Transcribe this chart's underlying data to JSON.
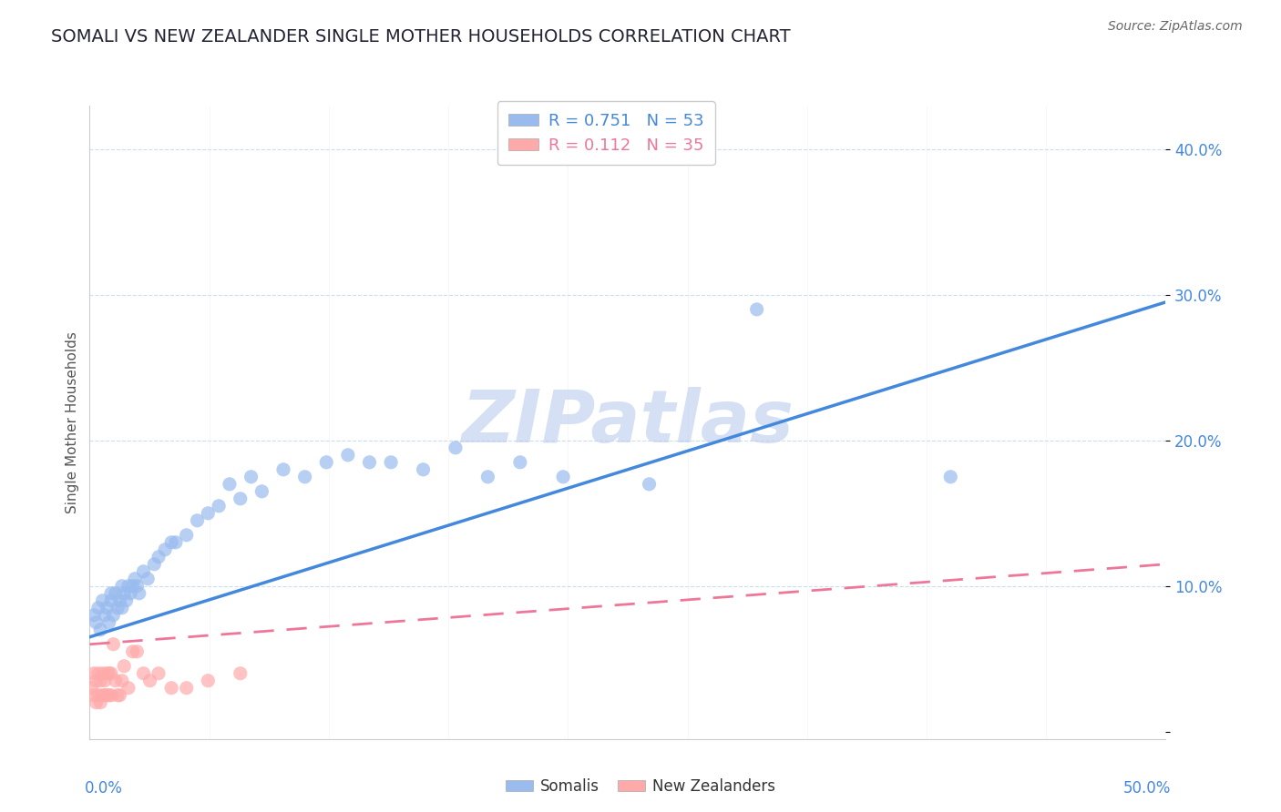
{
  "title": "SOMALI VS NEW ZEALANDER SINGLE MOTHER HOUSEHOLDS CORRELATION CHART",
  "source_text": "Source: ZipAtlas.com",
  "ylabel": "Single Mother Households",
  "xlim": [
    0.0,
    0.5
  ],
  "ylim": [
    -0.005,
    0.43
  ],
  "yticks": [
    0.0,
    0.1,
    0.2,
    0.3,
    0.4
  ],
  "ytick_labels": [
    "",
    "10.0%",
    "20.0%",
    "30.0%",
    "40.0%"
  ],
  "somali_R": 0.751,
  "somali_N": 53,
  "nz_R": 0.112,
  "nz_N": 35,
  "somali_color": "#99BBEE",
  "nz_color": "#FFAAAA",
  "somali_line_color": "#4488DD",
  "nz_line_color": "#EE7799",
  "watermark": "ZIPatlas",
  "watermark_color": "#BBCCEE",
  "background_color": "#FFFFFF",
  "title_fontsize": 14,
  "somali_x": [
    0.002,
    0.003,
    0.004,
    0.005,
    0.006,
    0.007,
    0.008,
    0.009,
    0.01,
    0.01,
    0.011,
    0.012,
    0.013,
    0.014,
    0.015,
    0.015,
    0.016,
    0.017,
    0.018,
    0.019,
    0.02,
    0.021,
    0.022,
    0.023,
    0.025,
    0.027,
    0.03,
    0.032,
    0.035,
    0.038,
    0.04,
    0.045,
    0.05,
    0.055,
    0.06,
    0.065,
    0.07,
    0.075,
    0.08,
    0.09,
    0.1,
    0.11,
    0.12,
    0.13,
    0.14,
    0.155,
    0.17,
    0.185,
    0.2,
    0.22,
    0.26,
    0.31,
    0.4
  ],
  "somali_y": [
    0.08,
    0.075,
    0.085,
    0.07,
    0.09,
    0.08,
    0.085,
    0.075,
    0.09,
    0.095,
    0.08,
    0.095,
    0.085,
    0.09,
    0.1,
    0.085,
    0.095,
    0.09,
    0.1,
    0.095,
    0.1,
    0.105,
    0.1,
    0.095,
    0.11,
    0.105,
    0.115,
    0.12,
    0.125,
    0.13,
    0.13,
    0.135,
    0.145,
    0.15,
    0.155,
    0.17,
    0.16,
    0.175,
    0.165,
    0.18,
    0.175,
    0.185,
    0.19,
    0.185,
    0.185,
    0.18,
    0.195,
    0.175,
    0.185,
    0.175,
    0.17,
    0.29,
    0.175
  ],
  "nz_x": [
    0.001,
    0.002,
    0.002,
    0.003,
    0.003,
    0.004,
    0.004,
    0.005,
    0.005,
    0.006,
    0.006,
    0.007,
    0.007,
    0.008,
    0.008,
    0.009,
    0.009,
    0.01,
    0.01,
    0.011,
    0.012,
    0.013,
    0.014,
    0.015,
    0.016,
    0.018,
    0.02,
    0.022,
    0.025,
    0.028,
    0.032,
    0.038,
    0.045,
    0.055,
    0.07
  ],
  "nz_y": [
    0.03,
    0.025,
    0.04,
    0.02,
    0.035,
    0.025,
    0.04,
    0.02,
    0.035,
    0.025,
    0.04,
    0.025,
    0.035,
    0.025,
    0.04,
    0.025,
    0.04,
    0.025,
    0.04,
    0.06,
    0.035,
    0.025,
    0.025,
    0.035,
    0.045,
    0.03,
    0.055,
    0.055,
    0.04,
    0.035,
    0.04,
    0.03,
    0.03,
    0.035,
    0.04
  ],
  "somali_line_start_x": 0.0,
  "somali_line_end_x": 0.5,
  "somali_line_start_y": 0.065,
  "somali_line_end_y": 0.295,
  "nz_line_start_x": 0.0,
  "nz_line_end_x": 0.5,
  "nz_line_start_y": 0.06,
  "nz_line_end_y": 0.115
}
